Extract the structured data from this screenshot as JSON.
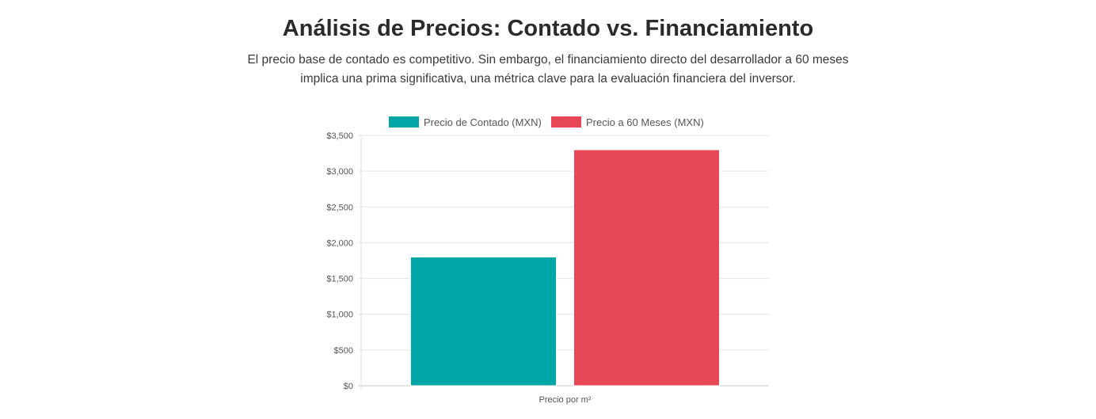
{
  "header": {
    "title": "Análisis de Precios: Contado vs. Financiamiento",
    "subtitle": "El precio base de contado es competitivo. Sin embargo, el financiamiento directo del desarrollador a 60 meses implica una prima significativa, una métrica clave para la evaluación financiera del inversor."
  },
  "chart_data": {
    "type": "bar",
    "categories": [
      "Precio por m²"
    ],
    "series": [
      {
        "name": "Precio de Contado (MXN)",
        "values": [
          1800
        ],
        "color": "#00a6a6"
      },
      {
        "name": "Precio a 60 Meses (MXN)",
        "values": [
          3300
        ],
        "color": "#e84757"
      }
    ],
    "ylim": [
      0,
      3500
    ],
    "yticks": [
      0,
      500,
      1000,
      1500,
      2000,
      2500,
      3000,
      3500
    ],
    "ytick_labels": [
      "$0",
      "$500",
      "$1,000",
      "$1,500",
      "$2,000",
      "$2,500",
      "$3,000",
      "$3,500"
    ],
    "xlabel": "",
    "ylabel": "",
    "grid": true,
    "legend_position": "top"
  }
}
